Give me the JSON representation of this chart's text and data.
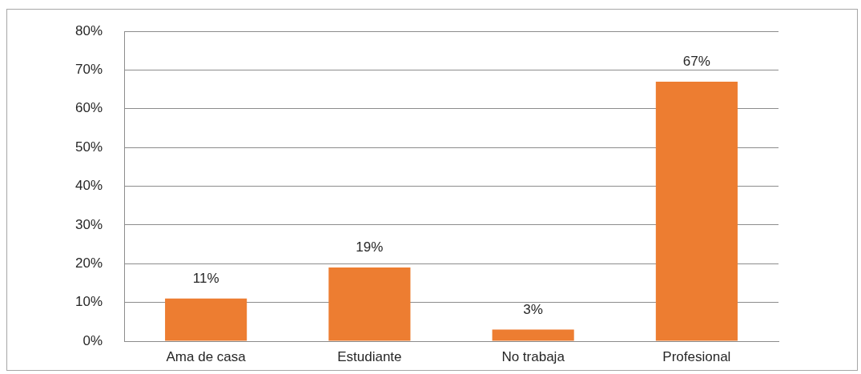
{
  "chart_data": {
    "type": "bar",
    "categories": [
      "Ama de casa",
      "Estudiante",
      "No trabaja",
      "Profesional"
    ],
    "values": [
      11,
      19,
      3,
      67
    ],
    "color": "#ed7d31",
    "value_labels": [
      "11%",
      "19%",
      "3%",
      "67%"
    ],
    "ylim": [
      0,
      80
    ],
    "yticks": [
      {
        "value": 0,
        "label": "0%"
      },
      {
        "value": 10,
        "label": "10%"
      },
      {
        "value": 20,
        "label": "20%"
      },
      {
        "value": 30,
        "label": "30%"
      },
      {
        "value": 40,
        "label": "40%"
      },
      {
        "value": 50,
        "label": "50%"
      },
      {
        "value": 60,
        "label": "60%"
      },
      {
        "value": 70,
        "label": "70%"
      },
      {
        "value": 80,
        "label": "80%"
      }
    ],
    "grid": "y"
  }
}
